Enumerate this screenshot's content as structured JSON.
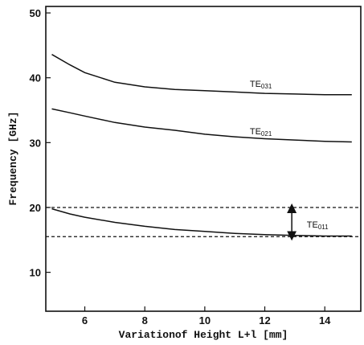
{
  "chart_data": {
    "type": "line",
    "xlabel": "Variationof Height L+l [mm]",
    "ylabel": "Frequency [GHz]",
    "xlim": [
      4.7,
      15.2
    ],
    "ylim": [
      4,
      51
    ],
    "xticks": [
      6,
      8,
      10,
      12,
      14
    ],
    "yticks": [
      10,
      20,
      30,
      40,
      50
    ],
    "series": [
      {
        "name": "TE031",
        "name_main": "TE",
        "name_sub": "031",
        "x": [
          4.9,
          5.5,
          6.0,
          7.0,
          8.0,
          9.0,
          10.0,
          11.0,
          12.0,
          13.0,
          14.0,
          14.9
        ],
        "y": [
          43.6,
          42.0,
          40.8,
          39.3,
          38.6,
          38.2,
          38.0,
          37.8,
          37.6,
          37.5,
          37.4,
          37.4
        ]
      },
      {
        "name": "TE021",
        "name_main": "TE",
        "name_sub": "021",
        "x": [
          4.9,
          5.5,
          6.0,
          7.0,
          8.0,
          9.0,
          10.0,
          11.0,
          12.0,
          13.0,
          14.0,
          14.9
        ],
        "y": [
          35.2,
          34.6,
          34.1,
          33.1,
          32.4,
          31.9,
          31.3,
          30.9,
          30.6,
          30.4,
          30.2,
          30.1
        ]
      },
      {
        "name": "TE011",
        "name_main": "TE",
        "name_sub": "011",
        "x": [
          4.9,
          5.5,
          6.0,
          7.0,
          8.0,
          9.0,
          10.0,
          11.0,
          12.0,
          13.0,
          14.0,
          14.9
        ],
        "y": [
          19.8,
          19.0,
          18.5,
          17.7,
          17.1,
          16.6,
          16.3,
          16.0,
          15.8,
          15.7,
          15.6,
          15.6
        ]
      }
    ],
    "reference_lines": [
      20.0,
      15.5
    ],
    "span_arrow": {
      "x": 12.9,
      "y_from": 20.0,
      "y_to": 15.5
    },
    "grid": false
  }
}
